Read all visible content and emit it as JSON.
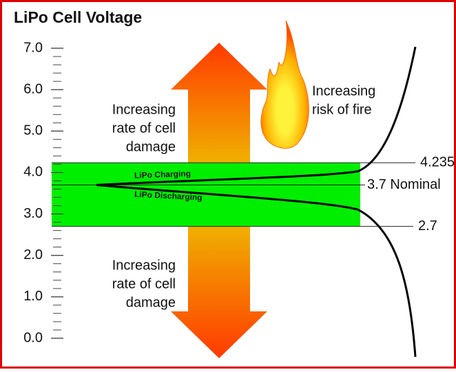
{
  "title": "LiPo Cell Voltage",
  "axis": {
    "ylim": [
      0,
      7
    ],
    "yticks": [
      {
        "value": 0,
        "label": "0.0"
      },
      {
        "value": 1,
        "label": "1.0"
      },
      {
        "value": 2,
        "label": "2.0"
      },
      {
        "value": 3,
        "label": "3.0"
      },
      {
        "value": 4,
        "label": "4.0"
      },
      {
        "value": 5,
        "label": "5.0"
      },
      {
        "value": 6,
        "label": "6.0"
      },
      {
        "value": 7,
        "label": "7.0"
      }
    ]
  },
  "thresholds": [
    {
      "value": 4.235,
      "label": "4.235"
    },
    {
      "value": 3.7,
      "label": "3.7 Nominal"
    },
    {
      "value": 2.7,
      "label": "2.7"
    }
  ],
  "curves": {
    "charging": "LiPo Charging",
    "discharging": "LiPo Discharging"
  },
  "annotations": {
    "upper_damage": [
      "Increasing",
      "rate of cell",
      "damage"
    ],
    "lower_damage": [
      "Increasing",
      "rate of cell",
      "damage"
    ],
    "fire": [
      "Increasing",
      "risk of fire"
    ]
  }
}
